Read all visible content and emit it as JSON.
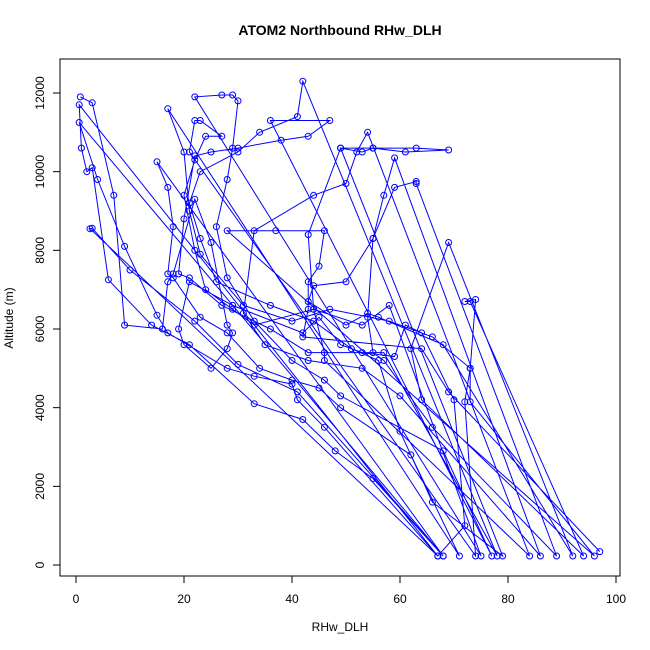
{
  "chart_data": {
    "type": "line",
    "title": "ATOM2 Northbound RHw_DLH",
    "xlabel": "RHw_DLH",
    "ylabel": "Altitude (m)",
    "xlim": [
      0,
      100
    ],
    "ylim": [
      0,
      12000
    ],
    "xticks": [
      "0",
      "20",
      "40",
      "60",
      "80",
      "100"
    ],
    "yticks": [
      "0",
      "2000",
      "4000",
      "6000",
      "8000",
      "10000",
      "12000"
    ],
    "grid": false,
    "legend": "none",
    "marker": "open-circle",
    "series": [
      {
        "color": "#0000ff",
        "points": [
          [
            0.8,
            11900
          ],
          [
            3,
            11750
          ],
          [
            7,
            9400
          ],
          [
            9,
            6100
          ],
          [
            16,
            6000
          ],
          [
            17,
            7200
          ],
          [
            18,
            7400
          ],
          [
            22,
            9300
          ],
          [
            25,
            8200
          ],
          [
            28,
            6100
          ],
          [
            29,
            5900
          ],
          [
            28,
            5500
          ],
          [
            25,
            5000
          ],
          [
            20,
            5600
          ],
          [
            19,
            6000
          ],
          [
            21,
            7200
          ],
          [
            29,
            6600
          ],
          [
            42,
            5900
          ],
          [
            45,
            6300
          ],
          [
            49,
            5600
          ],
          [
            53,
            5400
          ],
          [
            59,
            5300
          ],
          [
            61,
            6100
          ],
          [
            64,
            5900
          ],
          [
            70,
            4200
          ],
          [
            72,
            1000
          ],
          [
            67,
            230
          ],
          [
            0.6,
            11700
          ],
          [
            1,
            10600
          ],
          [
            2,
            10000
          ],
          [
            3,
            10100
          ],
          [
            6,
            7250
          ],
          [
            14,
            6100
          ],
          [
            21,
            5600
          ],
          [
            33,
            4100
          ],
          [
            42,
            3700
          ],
          [
            48,
            2900
          ],
          [
            55,
            2200
          ],
          [
            68,
            230
          ],
          [
            0.6,
            11250
          ],
          [
            4,
            9800
          ],
          [
            9,
            8100
          ],
          [
            15,
            6350
          ],
          [
            17,
            5900
          ],
          [
            28,
            5000
          ],
          [
            33,
            4800
          ],
          [
            40,
            4600
          ],
          [
            41,
            4200
          ],
          [
            46,
            3500
          ],
          [
            67,
            230
          ],
          [
            2.6,
            8550
          ],
          [
            3,
            8560
          ],
          [
            10,
            7500
          ],
          [
            22,
            6200
          ],
          [
            30,
            5100
          ],
          [
            41,
            4400
          ],
          [
            68,
            230
          ],
          [
            15,
            10250
          ],
          [
            17,
            9600
          ],
          [
            18,
            8600
          ],
          [
            17,
            7400
          ],
          [
            18,
            7300
          ],
          [
            23,
            6300
          ],
          [
            28,
            5900
          ],
          [
            34,
            5000
          ],
          [
            40,
            4700
          ],
          [
            45,
            4500
          ],
          [
            49,
            4000
          ],
          [
            62,
            2800
          ],
          [
            71,
            230
          ],
          [
            17,
            11600
          ],
          [
            20,
            10500
          ],
          [
            21,
            9000
          ],
          [
            23,
            7900
          ],
          [
            31,
            6600
          ],
          [
            40,
            6200
          ],
          [
            47,
            6500
          ],
          [
            58,
            6200
          ],
          [
            66,
            5800
          ],
          [
            73,
            5000
          ],
          [
            72,
            4150
          ],
          [
            74,
            230
          ],
          [
            21,
            10500
          ],
          [
            22,
            11300
          ],
          [
            23,
            11300
          ],
          [
            27,
            10900
          ],
          [
            24,
            10900
          ],
          [
            22,
            10300
          ],
          [
            20,
            9400
          ],
          [
            22,
            8000
          ],
          [
            24,
            7000
          ],
          [
            29,
            6500
          ],
          [
            33,
            6100
          ],
          [
            44,
            6500
          ],
          [
            53,
            6100
          ],
          [
            58,
            6600
          ],
          [
            75,
            230
          ],
          [
            22,
            11900
          ],
          [
            27,
            11950
          ],
          [
            29,
            11950
          ],
          [
            30,
            11800
          ],
          [
            29,
            10600
          ],
          [
            28,
            9800
          ],
          [
            26,
            8600
          ],
          [
            28,
            7300
          ],
          [
            33,
            6200
          ],
          [
            40,
            5200
          ],
          [
            46,
            4700
          ],
          [
            49,
            4300
          ],
          [
            68,
            2900
          ],
          [
            77,
            230
          ],
          [
            36,
            11300
          ],
          [
            47,
            11300
          ],
          [
            43,
            10900
          ],
          [
            38,
            10800
          ],
          [
            30,
            10600
          ],
          [
            25,
            10500
          ],
          [
            22,
            10400
          ],
          [
            20,
            8800
          ],
          [
            19,
            7400
          ],
          [
            21,
            7300
          ],
          [
            27,
            6600
          ],
          [
            36,
            6000
          ],
          [
            43,
            5400
          ],
          [
            57,
            5400
          ],
          [
            78,
            230
          ],
          [
            42,
            12300
          ],
          [
            41,
            11400
          ],
          [
            34,
            11000
          ],
          [
            30,
            10500
          ],
          [
            23,
            10000
          ],
          [
            21,
            9200
          ],
          [
            23,
            8300
          ],
          [
            26,
            7200
          ],
          [
            36,
            6600
          ],
          [
            44,
            6200
          ],
          [
            51,
            5500
          ],
          [
            56,
            5200
          ],
          [
            60,
            3400
          ],
          [
            66,
            1600
          ],
          [
            79,
            230
          ],
          [
            49,
            10600
          ],
          [
            53,
            10500
          ],
          [
            55,
            10600
          ],
          [
            63,
            10600
          ],
          [
            69,
            10550
          ],
          [
            61,
            10500
          ],
          [
            55,
            10600
          ],
          [
            49,
            10600
          ],
          [
            43,
            8400
          ],
          [
            44,
            6500
          ],
          [
            46,
            5400
          ],
          [
            46,
            5200
          ],
          [
            84,
            230
          ],
          [
            54,
            11000
          ],
          [
            52,
            10500
          ],
          [
            50,
            9700
          ],
          [
            44,
            9400
          ],
          [
            33,
            8500
          ],
          [
            31,
            6400
          ],
          [
            35,
            5600
          ],
          [
            43,
            5200
          ],
          [
            53,
            5000
          ],
          [
            60,
            4300
          ],
          [
            86,
            230
          ],
          [
            59,
            10350
          ],
          [
            57,
            9400
          ],
          [
            55,
            8300
          ],
          [
            54,
            6300
          ],
          [
            55,
            5400
          ],
          [
            57,
            5200
          ],
          [
            66,
            3500
          ],
          [
            89,
            230
          ],
          [
            63,
            9700
          ],
          [
            63,
            9750
          ],
          [
            59,
            9600
          ],
          [
            55,
            8300
          ],
          [
            50,
            7200
          ],
          [
            44,
            7100
          ],
          [
            43,
            6700
          ],
          [
            50,
            6100
          ],
          [
            54,
            6400
          ],
          [
            56,
            6300
          ],
          [
            68,
            5600
          ],
          [
            92,
            230
          ],
          [
            69,
            8200
          ],
          [
            62,
            5500
          ],
          [
            64,
            4200
          ],
          [
            94,
            230
          ],
          [
            73,
            6700
          ],
          [
            72,
            6700
          ],
          [
            74,
            6750
          ],
          [
            73,
            5000
          ],
          [
            73,
            4150
          ],
          [
            96,
            230
          ],
          [
            28,
            8500
          ],
          [
            37,
            8500
          ],
          [
            46,
            8500
          ],
          [
            45,
            7600
          ],
          [
            43,
            7200
          ],
          [
            43,
            6500
          ],
          [
            42,
            5800
          ],
          [
            64,
            5500
          ],
          [
            69,
            4400
          ],
          [
            97,
            340
          ]
        ]
      }
    ]
  }
}
